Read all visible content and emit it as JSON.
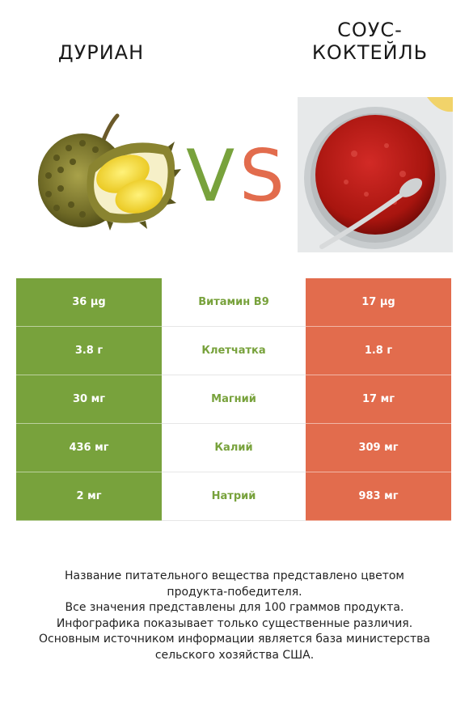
{
  "left_food": {
    "name": "ДУРИАН"
  },
  "right_food": {
    "name": "СОУС-КОКТЕЙЛЬ"
  },
  "colors": {
    "left": "#78a23c",
    "right": "#e26c4d"
  },
  "vs_text": {
    "v": "V",
    "s": "S"
  },
  "rows": [
    {
      "left": "36 µg",
      "nutrient": "Витамин B9",
      "right": "17 µg",
      "winner": "left"
    },
    {
      "left": "3.8 г",
      "nutrient": "Клетчатка",
      "right": "1.8 г",
      "winner": "left"
    },
    {
      "left": "30 мг",
      "nutrient": "Магний",
      "right": "17 мг",
      "winner": "left"
    },
    {
      "left": "436 мг",
      "nutrient": "Калий",
      "right": "309 мг",
      "winner": "left"
    },
    {
      "left": "2 мг",
      "nutrient": "Натрий",
      "right": "983 мг",
      "winner": "left"
    }
  ],
  "footer": {
    "line1": "Название питательного вещества представлено цветом",
    "line2": "продукта-победителя.",
    "line3": "Все значения представлены для 100 граммов продукта.",
    "line4": "Инфографика показывает только существенные различия.",
    "line5": "Основным источником информации является база министерства",
    "line6": "сельского хозяйства США."
  }
}
